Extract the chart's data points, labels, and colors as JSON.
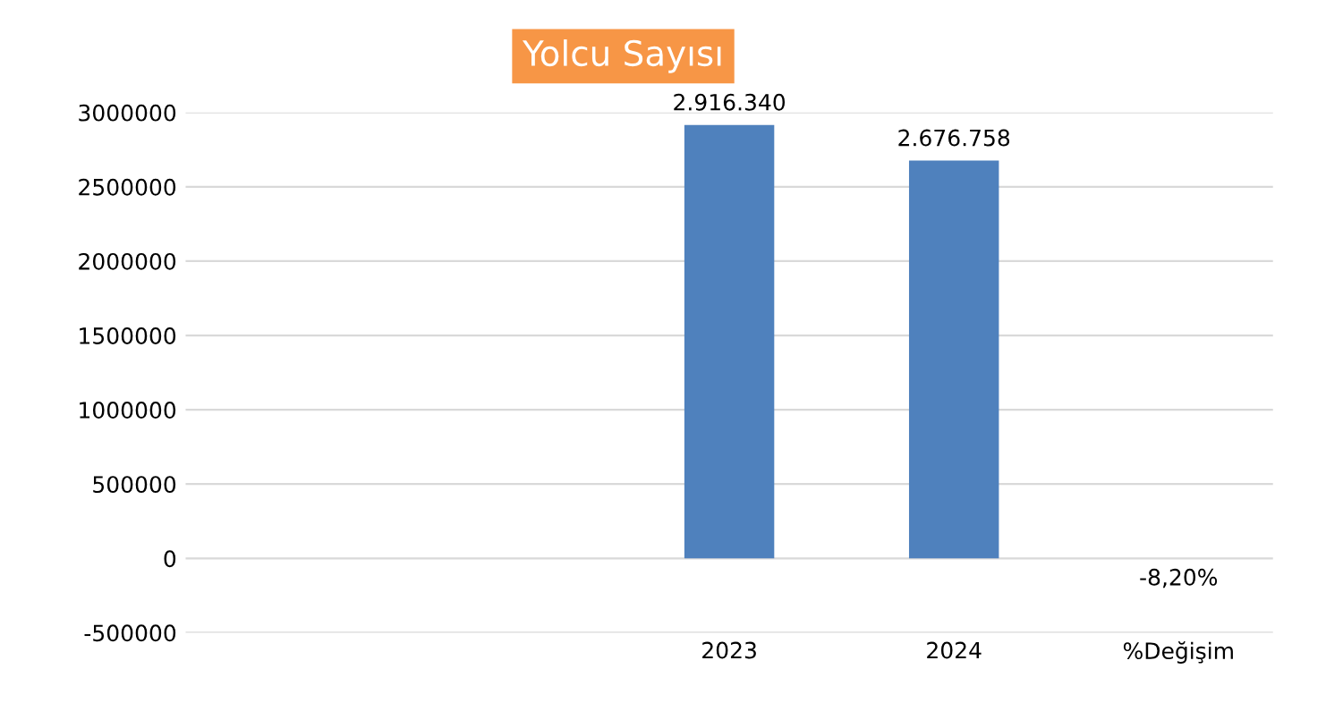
{
  "chart_data": {
    "type": "bar",
    "title": "Yolcu Sayısı",
    "categories": [
      null,
      null,
      "2023",
      "2024",
      "%Değişim"
    ],
    "values": [
      null,
      null,
      2916340,
      2676758,
      -0.082
    ],
    "value_labels": [
      null,
      null,
      "2.916.340",
      "2.676.758",
      "-8,20%"
    ],
    "color": "#4f81bd",
    "ylim": [
      -500000,
      3000000
    ],
    "yticks": [
      -500000,
      0,
      500000,
      1000000,
      1500000,
      2000000,
      2500000,
      3000000
    ],
    "grid": "y"
  }
}
